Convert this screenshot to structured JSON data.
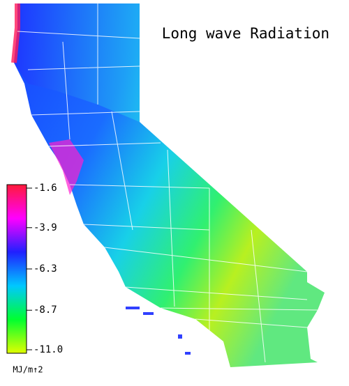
{
  "map": {
    "title": "Long wave Radiation",
    "colorbar": {
      "ticks": [
        -1.6,
        -3.9,
        -6.3,
        -8.7,
        {
          "value": -11,
          "label": "-11.0"
        }
      ],
      "colors": [
        "#ff1a3a",
        "#ff00ff",
        "#2020ff",
        "#00c8ff",
        "#00ff30",
        "#e0ff00"
      ],
      "unit": "MJ/m↑2"
    }
  }
}
